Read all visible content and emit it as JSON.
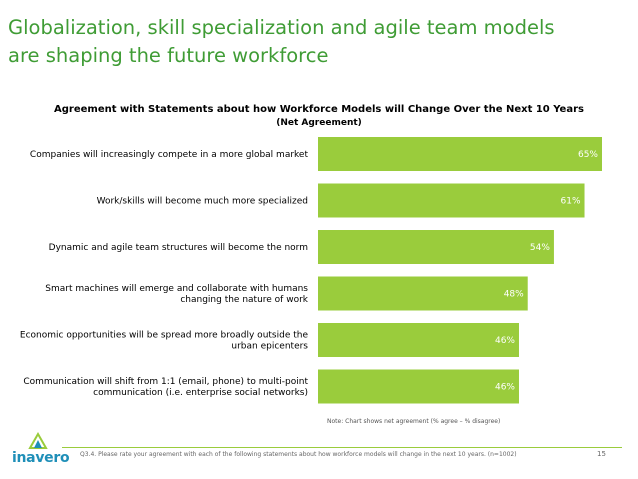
{
  "slide": {
    "title_line1": "Globalization, skill specialization and agile team models",
    "title_line2": "are shaping the future workforce",
    "note": "Note: Chart shows net agreement (% agree – % disagree)",
    "footnote": "Q3.4.  Please rate your agreement with each of the following statements about how workforce models will change in the next 10 years. (n=1002)",
    "page_number": "15",
    "logo_text": "inavero"
  },
  "colors": {
    "title": "#3f9c35",
    "bar": "#9acc3c",
    "logo": "#1f8fb8"
  },
  "chart_data": {
    "type": "bar",
    "orientation": "horizontal",
    "title": "Agreement with Statements about how Workforce Models will Change Over the Next 10 Years",
    "subtitle": "(Net Agreement)",
    "categories": [
      [
        "Companies will increasingly compete in a more global market"
      ],
      [
        "Work/skills will become much more specialized"
      ],
      [
        "Dynamic and agile team structures will become the norm"
      ],
      [
        "Smart machines will emerge and collaborate with humans",
        "changing the nature of work"
      ],
      [
        "Economic opportunities will be spread more broadly outside the",
        "urban epicenters"
      ],
      [
        "Communication will shift from 1:1 (email, phone) to multi-point",
        "communication (i.e. enterprise social networks)"
      ]
    ],
    "values": [
      65,
      61,
      54,
      48,
      46,
      46
    ],
    "value_labels": [
      "65%",
      "61%",
      "54%",
      "48%",
      "46%",
      "46%"
    ],
    "xlim": [
      0,
      65
    ],
    "grid": false,
    "legend": "none"
  }
}
